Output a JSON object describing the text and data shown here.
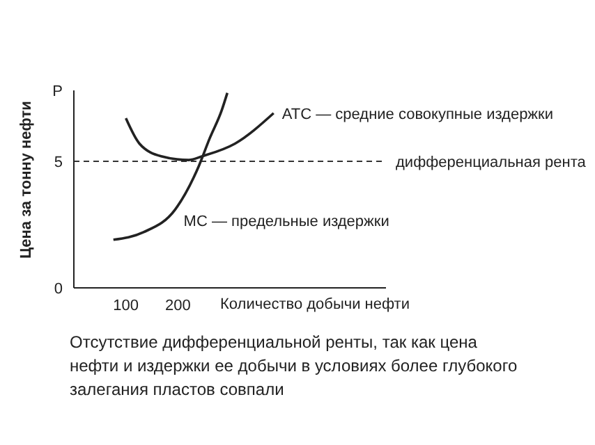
{
  "chart_data": {
    "type": "line",
    "xlabel": "Количество добычи нефти",
    "ylabel": "Цена за тонну нефти",
    "xlim": [
      0,
      600
    ],
    "ylim": [
      0,
      7.8
    ],
    "xticks": [
      100,
      200
    ],
    "yticks": [
      0,
      5,
      {
        "value": 7.8,
        "label": "P"
      }
    ],
    "series": [
      {
        "name": "ATC — средние совокупные издержки",
        "color": "#222222",
        "x": [
          100,
          126,
          168,
          221,
          247,
          310,
          384
        ],
        "values": [
          6.7,
          5.7,
          5.2,
          5.05,
          5.2,
          5.7,
          6.9
        ]
      },
      {
        "name": "MC — предельные издержки",
        "color": "#222222",
        "x": [
          76,
          134,
          195,
          240,
          261,
          284,
          295
        ],
        "values": [
          1.9,
          2.2,
          3.1,
          4.8,
          5.9,
          7.0,
          7.7
        ]
      }
    ],
    "ref_lines": [
      {
        "axis": "y",
        "value": 5,
        "label": "дифференциальная рента",
        "line_style": "dashed",
        "color": "#333333"
      }
    ],
    "marker": "none",
    "line_style": "solid",
    "grid": false,
    "legend": false,
    "annotations": [
      "Отсутствие дифференциальной ренты, так как цена нефти и издержки ее добычи в условиях более глубокого залегания пластов совпали"
    ]
  }
}
